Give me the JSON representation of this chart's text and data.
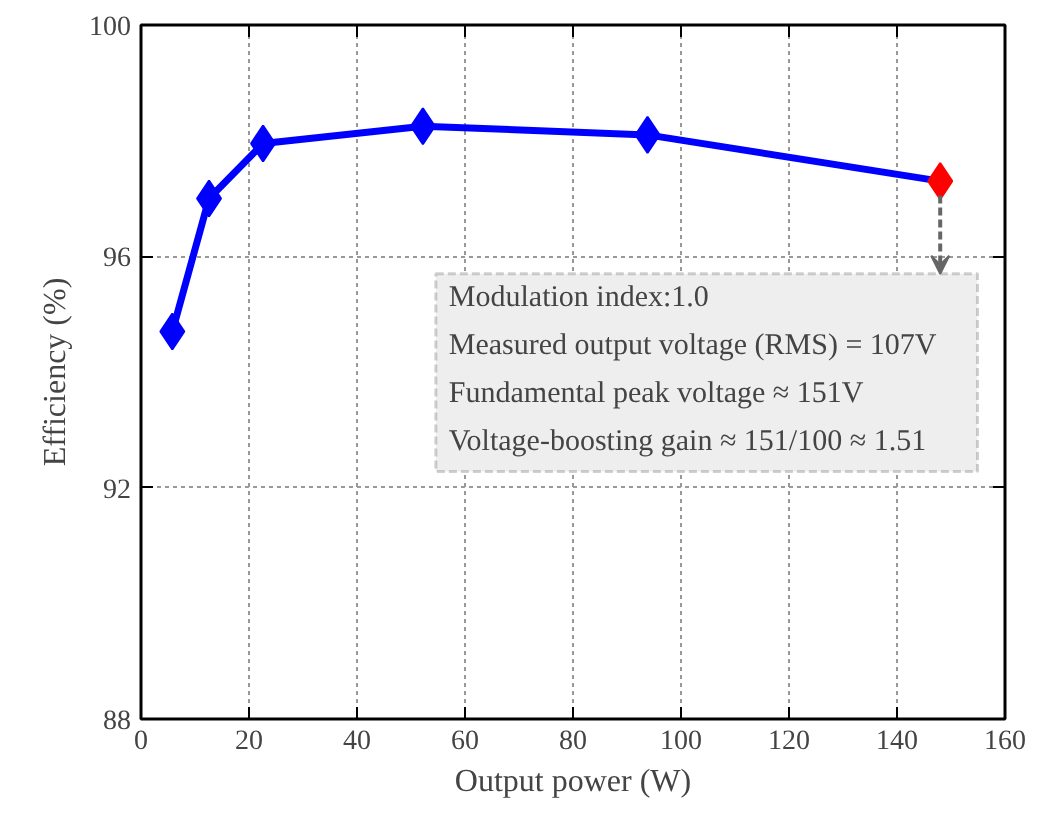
{
  "chart_data": {
    "type": "line",
    "xlabel": "Output power (W)",
    "ylabel": "Efficiency (%)",
    "x": [
      5.8,
      12.6,
      22.6,
      52.2,
      93.8,
      148
    ],
    "series": [
      {
        "color": "#0000ff",
        "colors": [
          "#0000ff",
          "#0000ff",
          "#0000ff",
          "#0000ff",
          "#0000ff",
          "#ff0000"
        ],
        "values": [
          94.7,
          97.0,
          97.95,
          98.25,
          98.1,
          97.3
        ]
      }
    ],
    "xlim": [
      0,
      160
    ],
    "xticks": [
      0,
      20,
      40,
      60,
      80,
      100,
      120,
      140,
      160
    ],
    "ylim": [
      88,
      100
    ],
    "yticks": [
      88,
      92,
      96,
      100
    ],
    "grid": true,
    "marker": "diamond",
    "line_style": "solid",
    "annotations": [
      "Modulation index:1.0",
      "Measured output voltage (RMS) = 107V",
      "Fundamental peak voltage ≈ 151V",
      "Voltage-boosting gain ≈ 151/100 ≈ 1.51"
    ]
  }
}
